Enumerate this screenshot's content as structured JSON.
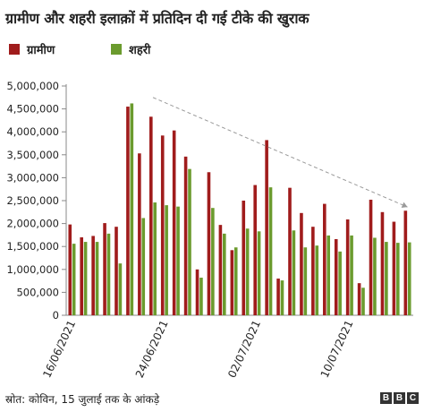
{
  "title": "ग्रामीण और शहरी इलाक़ों में प्रतिदिन दी गई टीके की खुराक",
  "source": "स्रोत: कोविन, 15 जुलाई तक के आंकड़े",
  "logo": [
    "B",
    "B",
    "C"
  ],
  "colors": {
    "rural": "#a01c1c",
    "urban": "#6b9b2e",
    "axis": "#888888",
    "trend": "#9a9a9a"
  },
  "chart_data": {
    "type": "bar",
    "title": "ग्रामीण और शहरी इलाक़ों में प्रतिदिन दी गई टीके की खुराक",
    "ylim": [
      0,
      5000000
    ],
    "yticks": [
      "0",
      "500,000",
      "1,000,000",
      "1,500,000",
      "2,000,000",
      "2,500,000",
      "3,000,000",
      "3,500,000",
      "4,000,000",
      "4,500,000",
      "5,000,000"
    ],
    "grid": false,
    "legend_position": "top-left",
    "categories": [
      "16/06/2021",
      "17/06/2021",
      "18/06/2021",
      "19/06/2021",
      "20/06/2021",
      "21/06/2021",
      "22/06/2021",
      "23/06/2021",
      "24/06/2021",
      "25/06/2021",
      "26/06/2021",
      "27/06/2021",
      "28/06/2021",
      "29/06/2021",
      "30/06/2021",
      "01/07/2021",
      "02/07/2021",
      "03/07/2021",
      "04/07/2021",
      "05/07/2021",
      "06/07/2021",
      "07/07/2021",
      "08/07/2021",
      "09/07/2021",
      "10/07/2021",
      "11/07/2021",
      "12/07/2021",
      "13/07/2021",
      "14/07/2021",
      "15/07/2021"
    ],
    "xtick_labels": [
      {
        "index": 0,
        "label": "16/06/2021"
      },
      {
        "index": 8,
        "label": "24/06/2021"
      },
      {
        "index": 16,
        "label": "02/07/2021"
      },
      {
        "index": 24,
        "label": "10/07/2021"
      }
    ],
    "series": [
      {
        "name": "ग्रामीण",
        "color": "#a01c1c",
        "values": [
          1980000,
          1700000,
          1730000,
          2010000,
          1930000,
          4550000,
          3530000,
          4330000,
          3920000,
          4030000,
          3460000,
          1000000,
          3120000,
          1970000,
          1420000,
          2500000,
          2840000,
          3820000,
          800000,
          2780000,
          2230000,
          1930000,
          2430000,
          1660000,
          2090000,
          700000,
          2520000,
          2250000,
          2040000,
          2280000
        ]
      },
      {
        "name": "शहरी",
        "color": "#6b9b2e",
        "values": [
          1560000,
          1600000,
          1600000,
          1780000,
          1130000,
          4620000,
          2120000,
          2460000,
          2400000,
          2370000,
          3190000,
          820000,
          2340000,
          1780000,
          1480000,
          1890000,
          1830000,
          2790000,
          760000,
          1850000,
          1480000,
          1520000,
          1740000,
          1390000,
          1740000,
          600000,
          1690000,
          1600000,
          1580000,
          1590000
        ]
      }
    ],
    "trend_line": {
      "from": {
        "category": "23/06/2021",
        "value": 4750000
      },
      "to": {
        "category": "15/07/2021",
        "value": 2360000
      }
    }
  }
}
